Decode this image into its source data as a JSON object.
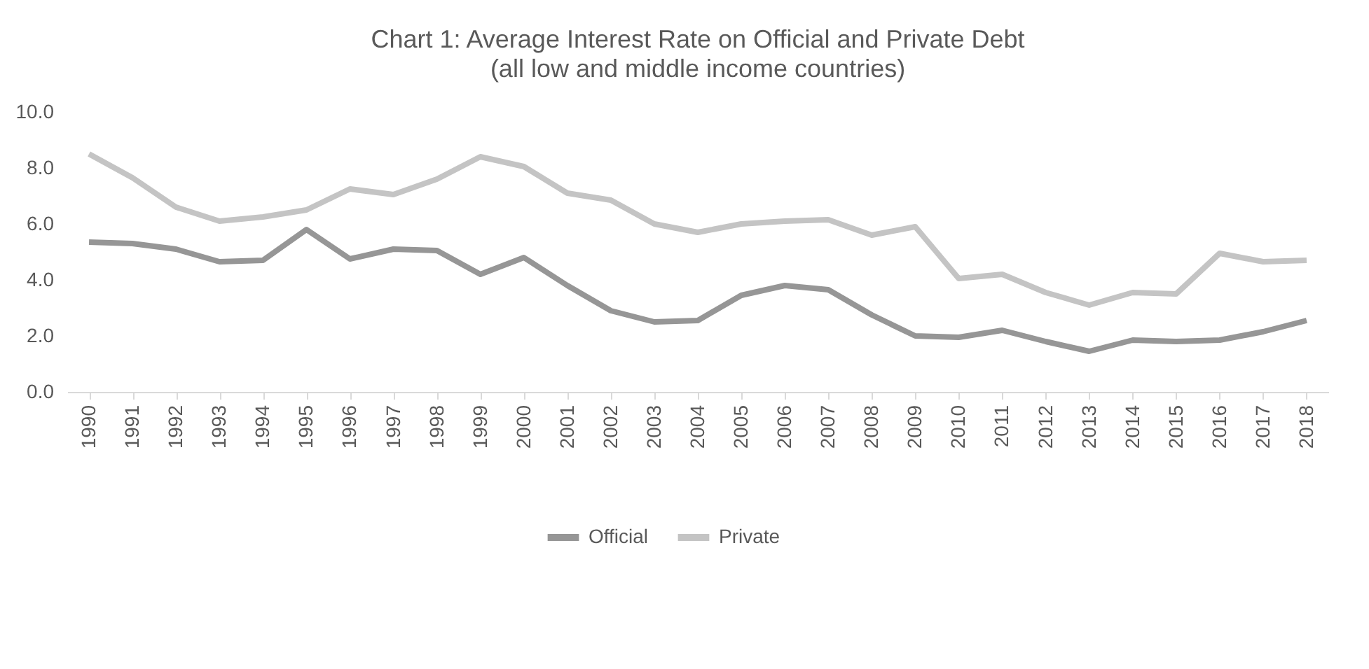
{
  "chart_data": {
    "type": "line",
    "title": "Chart 1: Average Interest Rate on Official and Private Debt",
    "subtitle": "(all low and middle income countries)",
    "categories": [
      "1990",
      "1991",
      "1992",
      "1993",
      "1994",
      "1995",
      "1996",
      "1997",
      "1998",
      "1999",
      "2000",
      "2001",
      "2002",
      "2003",
      "2004",
      "2005",
      "2006",
      "2007",
      "2008",
      "2009",
      "2010",
      "2011",
      "2012",
      "2013",
      "2014",
      "2015",
      "2016",
      "2017",
      "2018"
    ],
    "series": [
      {
        "name": "Official",
        "color": "#969696",
        "values": [
          5.35,
          5.3,
          5.1,
          4.65,
          4.7,
          5.8,
          4.75,
          5.1,
          5.05,
          4.2,
          4.8,
          3.8,
          2.9,
          2.5,
          2.55,
          3.45,
          3.8,
          3.65,
          2.75,
          2.0,
          1.95,
          2.2,
          1.8,
          1.45,
          1.85,
          1.8,
          1.85,
          2.15,
          2.55
        ]
      },
      {
        "name": "Private",
        "color": "#c4c4c4",
        "values": [
          8.5,
          7.65,
          6.6,
          6.1,
          6.25,
          6.5,
          7.25,
          7.05,
          7.6,
          8.4,
          8.05,
          7.1,
          6.85,
          6.0,
          5.7,
          6.0,
          6.1,
          6.15,
          5.6,
          5.9,
          4.05,
          4.2,
          3.55,
          3.1,
          3.55,
          3.5,
          4.95,
          4.65,
          4.7
        ]
      }
    ],
    "ylim": [
      0,
      10
    ],
    "yticks": [
      {
        "value": 0,
        "label": "0.0"
      },
      {
        "value": 2,
        "label": "2.0"
      },
      {
        "value": 4,
        "label": "4.0"
      },
      {
        "value": 6,
        "label": "6.0"
      },
      {
        "value": 8,
        "label": "8.0"
      },
      {
        "value": 10,
        "label": "10.0"
      }
    ],
    "grid": false,
    "legend": "bottom",
    "marker": "none",
    "line_style": "solid"
  }
}
